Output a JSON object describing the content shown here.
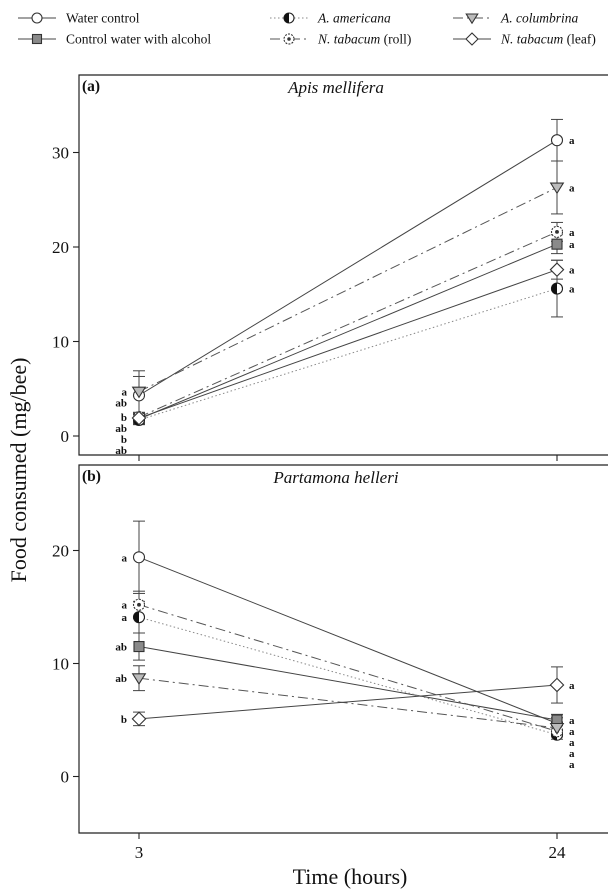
{
  "legend": [
    {
      "label": "Water control",
      "marker": "circle-open",
      "dash": "solid"
    },
    {
      "label": "Control water with alcohol",
      "marker": "square-gray",
      "dash": "solid"
    },
    {
      "label": "A. americana",
      "marker": "circle-half",
      "dash": "dotted"
    },
    {
      "label": "N. tabacum (roll)",
      "marker": "circle-dot",
      "dash": "dashdot"
    },
    {
      "label": "A. columbrina",
      "marker": "triangle-down",
      "dash": "dashdot"
    },
    {
      "label": "N. tabacum (leaf)",
      "marker": "diamond-open",
      "dash": "solid"
    }
  ],
  "ylabel": "Food consumed (mg/bee)",
  "xlabel": "Time (hours)",
  "chart_data": [
    {
      "type": "line",
      "panel_label": "(a)",
      "title": "Apis mellifera",
      "x": [
        3,
        24
      ],
      "xticks": [
        "3",
        "24"
      ],
      "ylim": [
        -0.5,
        35
      ],
      "yticks": [
        0,
        10,
        20,
        30
      ],
      "series": [
        {
          "name": "Water control",
          "values": [
            4.3,
            31.3
          ],
          "errors": [
            2.0,
            2.2
          ],
          "letters": [
            "ab",
            "a"
          ]
        },
        {
          "name": "Control water with alcohol",
          "values": [
            1.8,
            20.3
          ],
          "errors": [
            0.5,
            1.0
          ],
          "letters": [
            "b",
            "a"
          ]
        },
        {
          "name": "A. americana",
          "values": [
            1.7,
            15.6
          ],
          "errors": [
            0.5,
            3.0
          ],
          "letters": [
            "ab",
            "a"
          ]
        },
        {
          "name": "N. tabacum (roll)",
          "values": [
            2.0,
            21.6
          ],
          "errors": [
            0.5,
            1.0
          ],
          "letters": [
            "b",
            "a"
          ]
        },
        {
          "name": "A. columbrina",
          "values": [
            4.7,
            26.3
          ],
          "errors": [
            2.2,
            2.8
          ],
          "letters": [
            "a",
            "a"
          ]
        },
        {
          "name": "N. tabacum (leaf)",
          "values": [
            1.9,
            17.6
          ],
          "errors": [
            0.5,
            1.0
          ],
          "letters": [
            "ab",
            "a"
          ]
        }
      ]
    },
    {
      "type": "line",
      "panel_label": "(b)",
      "title": "Partamona helleri",
      "x": [
        3,
        24
      ],
      "xticks": [
        "3",
        "24"
      ],
      "ylim": [
        -5,
        25
      ],
      "yticks": [
        0,
        10,
        20
      ],
      "series": [
        {
          "name": "Water control",
          "values": [
            19.4,
            4.7
          ],
          "errors": [
            3.2,
            0.5
          ],
          "letters": [
            "a",
            "a"
          ]
        },
        {
          "name": "Control water with alcohol",
          "values": [
            11.5,
            5.0
          ],
          "errors": [
            1.2,
            0.5
          ],
          "letters": [
            "ab",
            "a"
          ]
        },
        {
          "name": "A. americana",
          "values": [
            14.1,
            3.7
          ],
          "errors": [
            1.4,
            0.4
          ],
          "letters": [
            "a",
            "a"
          ]
        },
        {
          "name": "N. tabacum (roll)",
          "values": [
            15.2,
            4.0
          ],
          "errors": [
            1.2,
            0.5
          ],
          "letters": [
            "a",
            "a"
          ]
        },
        {
          "name": "A. columbrina",
          "values": [
            8.7,
            4.3
          ],
          "errors": [
            1.1,
            0.5
          ],
          "letters": [
            "ab",
            "a"
          ]
        },
        {
          "name": "N. tabacum (leaf)",
          "values": [
            5.1,
            8.1
          ],
          "errors": [
            0.6,
            1.6
          ],
          "letters": [
            "b",
            "a"
          ]
        }
      ]
    }
  ]
}
